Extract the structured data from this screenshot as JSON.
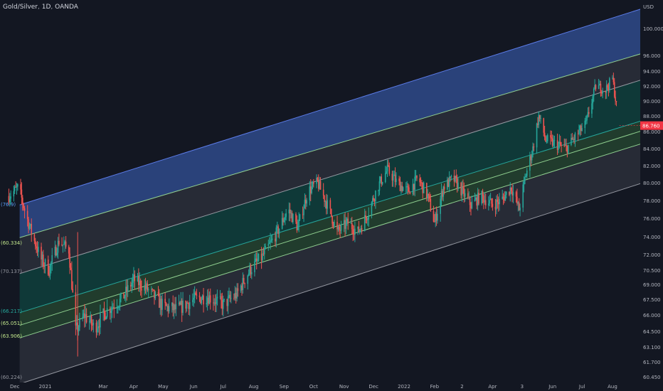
{
  "header": {
    "symbol": "Gold/Silver",
    "interval": "1D",
    "exchange": "OANDA"
  },
  "price_axis": {
    "currency": "USD",
    "labels": [
      "100.000",
      "96.000",
      "94.000",
      "92.000",
      "90.000",
      "88.000",
      "86.000",
      "84.000",
      "82.000",
      "80.000",
      "78.000",
      "76.000",
      "74.000",
      "72.000",
      "70.500",
      "69.000",
      "67.500",
      "66.000",
      "64.500",
      "63.100",
      "61.700",
      "60.450"
    ],
    "current_price": "86.760",
    "current_price_color": "#f23645"
  },
  "time_axis": {
    "labels": [
      "Dec",
      "2021",
      "Mar",
      "Apr",
      "May",
      "Jun",
      "Jul",
      "Aug",
      "Sep",
      "Oct",
      "Nov",
      "Dec",
      "2022",
      "Feb",
      "2",
      "Apr",
      "3",
      "Jun",
      "Jul",
      "Aug"
    ]
  },
  "fib_labels": [
    {
      "text": "(76.9)",
      "color": "#5b9cf6"
    },
    {
      "text": "(60.334)",
      "color": "#c3e88d"
    },
    {
      "text": "(70.137)",
      "color": "#9598a1"
    },
    {
      "text": "(66.217)",
      "color": "#26a69a"
    },
    {
      "text": "(65.051)",
      "color": "#c3e88d"
    },
    {
      "text": "(63.906)",
      "color": "#c3e88d"
    },
    {
      "text": "(60.224)",
      "color": "#9598a1"
    }
  ],
  "colors": {
    "background": "#131722",
    "up": "#26a69a",
    "down": "#ef5350",
    "band_blue": "#2f4a8a",
    "band_grey": "#2a2e39",
    "band_teal": "#0f3b3a",
    "band_green": "#23402f",
    "line_blue": "#5b7be6",
    "line_green": "#8fcf8f",
    "line_grey": "#9598a1"
  },
  "chart_data": {
    "type": "candlestick",
    "title": "Gold/Silver, 1D, OANDA",
    "ylabel": "USD",
    "ylim": [
      60.45,
      101.5
    ],
    "x_ticks": [
      "Dec",
      "2021",
      "Mar",
      "Apr",
      "May",
      "Jun",
      "Jul",
      "Aug",
      "Sep",
      "Oct",
      "Nov",
      "Dec",
      "2022",
      "Feb",
      "2",
      "Apr",
      "3",
      "Jun",
      "Jul",
      "Aug"
    ],
    "close_path": [
      [
        "2020-11-25",
        78.5
      ],
      [
        "2020-12-05",
        79.5
      ],
      [
        "2020-12-12",
        76.5
      ],
      [
        "2020-12-20",
        73.8
      ],
      [
        "2020-12-28",
        71.5
      ],
      [
        "2021-01-05",
        70.5
      ],
      [
        "2021-01-15",
        73.5
      ],
      [
        "2021-01-25",
        72.5
      ],
      [
        "2021-02-01",
        64.5
      ],
      [
        "2021-02-10",
        66.0
      ],
      [
        "2021-02-20",
        64.8
      ],
      [
        "2021-03-05",
        66.5
      ],
      [
        "2021-03-20",
        67.5
      ],
      [
        "2021-04-01",
        69.5
      ],
      [
        "2021-04-15",
        68.5
      ],
      [
        "2021-05-01",
        66.8
      ],
      [
        "2021-05-15",
        66.5
      ],
      [
        "2021-06-01",
        67.5
      ],
      [
        "2021-06-15",
        67.8
      ],
      [
        "2021-07-01",
        67.0
      ],
      [
        "2021-07-15",
        68.0
      ],
      [
        "2021-07-28",
        70.5
      ],
      [
        "2021-08-10",
        71.8
      ],
      [
        "2021-08-25",
        74.5
      ],
      [
        "2021-09-05",
        77.0
      ],
      [
        "2021-09-15",
        75.0
      ],
      [
        "2021-09-25",
        79.0
      ],
      [
        "2021-10-05",
        80.0
      ],
      [
        "2021-10-15",
        77.5
      ],
      [
        "2021-10-25",
        74.5
      ],
      [
        "2021-11-05",
        75.5
      ],
      [
        "2021-11-15",
        74.5
      ],
      [
        "2021-11-25",
        76.5
      ],
      [
        "2021-12-05",
        79.5
      ],
      [
        "2021-12-15",
        81.5
      ],
      [
        "2021-12-25",
        80.0
      ],
      [
        "2022-01-05",
        79.0
      ],
      [
        "2022-01-15",
        80.5
      ],
      [
        "2022-01-25",
        78.5
      ],
      [
        "2022-02-01",
        75.5
      ],
      [
        "2022-02-10",
        79.5
      ],
      [
        "2022-02-20",
        80.5
      ],
      [
        "2022-03-01",
        79.0
      ],
      [
        "2022-03-10",
        77.5
      ],
      [
        "2022-03-20",
        78.5
      ],
      [
        "2022-04-01",
        77.5
      ],
      [
        "2022-04-10",
        78.0
      ],
      [
        "2022-04-20",
        79.5
      ],
      [
        "2022-04-28",
        77.0
      ],
      [
        "2022-05-05",
        81.0
      ],
      [
        "2022-05-12",
        84.0
      ],
      [
        "2022-05-18",
        88.0
      ],
      [
        "2022-05-25",
        85.0
      ],
      [
        "2022-06-05",
        84.5
      ],
      [
        "2022-06-15",
        84.0
      ],
      [
        "2022-06-25",
        85.5
      ],
      [
        "2022-07-05",
        87.0
      ],
      [
        "2022-07-15",
        92.0
      ],
      [
        "2022-07-25",
        91.5
      ],
      [
        "2022-08-01",
        93.0
      ],
      [
        "2022-08-08",
        86.76
      ]
    ],
    "channel": {
      "x_start": "2020-12-06",
      "x_end": "2022-09-28",
      "levels": [
        {
          "name": "top",
          "y_start": 77.5,
          "y_end": 101.5
        },
        {
          "name": "upper-1",
          "y_start": 73.9,
          "y_end": 97.5
        },
        {
          "name": "upper-2",
          "y_start": 70.137,
          "y_end": 94.0
        },
        {
          "name": "mid-1",
          "y_start": 66.217,
          "y_end": 88.5
        },
        {
          "name": "mid-2",
          "y_start": 65.051,
          "y_end": 87.2
        },
        {
          "name": "mid-3",
          "y_start": 63.906,
          "y_end": 85.6
        },
        {
          "name": "bottom",
          "y_start": 60.3,
          "y_end": 81.0
        }
      ]
    }
  }
}
